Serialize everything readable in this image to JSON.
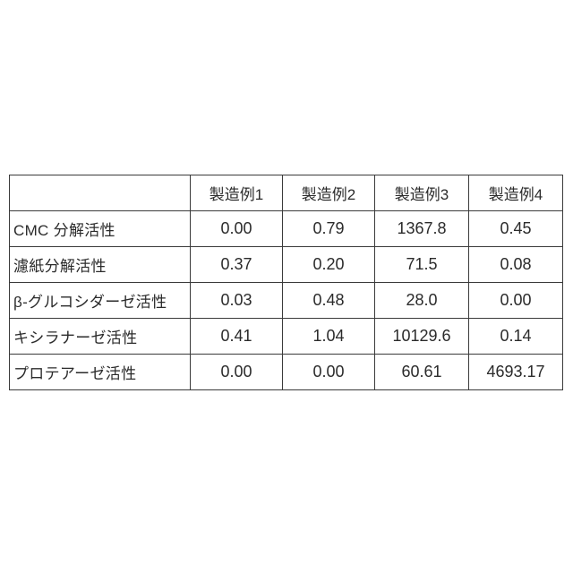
{
  "page": {
    "background_color": "#ffffff",
    "text_color": "#2b2b2b",
    "border_color": "#3a3a3a"
  },
  "table": {
    "columns": [
      "",
      "製造例1",
      "製造例2",
      "製造例3",
      "製造例4"
    ],
    "rows": [
      {
        "label": "CMC 分解活性",
        "values": [
          "0.00",
          "0.79",
          "1367.8",
          "0.45"
        ]
      },
      {
        "label": "濾紙分解活性",
        "values": [
          "0.37",
          "0.20",
          "71.5",
          "0.08"
        ]
      },
      {
        "label": "β-グルコシダーゼ活性",
        "values": [
          "0.03",
          "0.48",
          "28.0",
          "0.00"
        ]
      },
      {
        "label": "キシラナーゼ活性",
        "values": [
          "0.41",
          "1.04",
          "10129.6",
          "0.14"
        ]
      },
      {
        "label": "プロテアーゼ活性",
        "values": [
          "0.00",
          "0.00",
          "60.61",
          "4693.17"
        ]
      }
    ]
  },
  "chart_data": {
    "type": "table",
    "title": "",
    "categories": [
      "製造例1",
      "製造例2",
      "製造例3",
      "製造例4"
    ],
    "series": [
      {
        "name": "CMC 分解活性",
        "values": [
          0.0,
          0.79,
          1367.8,
          0.45
        ]
      },
      {
        "name": "濾紙分解活性",
        "values": [
          0.37,
          0.2,
          71.5,
          0.08
        ]
      },
      {
        "name": "β-グルコシダーゼ活性",
        "values": [
          0.03,
          0.48,
          28.0,
          0.0
        ]
      },
      {
        "name": "キシラナーゼ活性",
        "values": [
          0.41,
          1.04,
          10129.6,
          0.14
        ]
      },
      {
        "name": "プロテアーゼ活性",
        "values": [
          0.0,
          0.0,
          60.61,
          4693.17
        ]
      }
    ]
  }
}
